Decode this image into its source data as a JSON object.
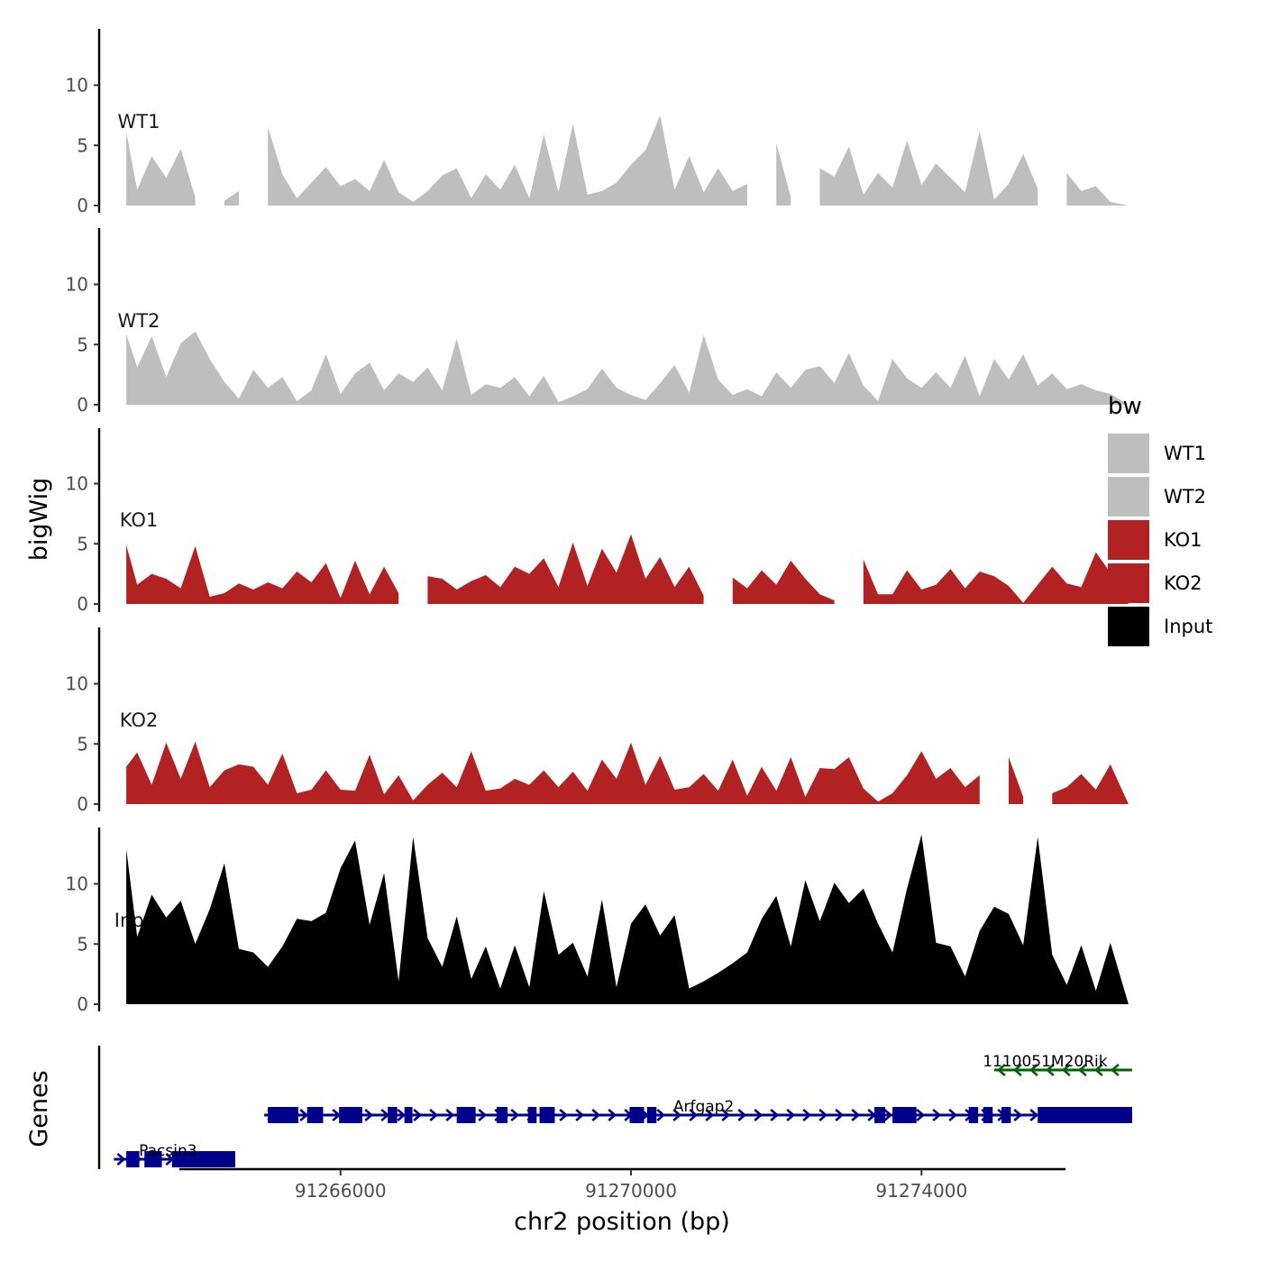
{
  "chart_data": {
    "type": "area",
    "xlabel": "chr2 position (bp)",
    "track_ylabel": "bigWig",
    "genes_ylabel": "Genes",
    "x_range": [
      91262900,
      91277000
    ],
    "x_ticks": [
      91266000,
      91270000,
      91274000
    ],
    "x_tick_labels": [
      "91266000",
      "91270000",
      "91274000"
    ],
    "y_range": [
      0,
      14.5
    ],
    "y_ticks": [
      0,
      5,
      10
    ],
    "y_tick_labels": [
      "0",
      "5",
      "10"
    ],
    "legend": {
      "title": "bw",
      "position": "right",
      "entries": [
        {
          "label": "WT1",
          "color": "#bebebe"
        },
        {
          "label": "WT2",
          "color": "#bebebe"
        },
        {
          "label": "KO1",
          "color": "#b22222"
        },
        {
          "label": "KO2",
          "color": "#b22222"
        },
        {
          "label": "Input",
          "color": "#000000"
        }
      ]
    },
    "tracks": [
      {
        "name": "WT1",
        "color": "#bebebe",
        "x": [
          91263050,
          91263200,
          91263400,
          91263600,
          91263800,
          91264000,
          91264200,
          91264400,
          91264600,
          91264800,
          91265000,
          91265200,
          91265400,
          91265600,
          91265800,
          91266000,
          91266200,
          91266400,
          91266600,
          91266800,
          91267000,
          91267200,
          91267400,
          91267600,
          91267800,
          91268000,
          91268200,
          91268400,
          91268600,
          91268800,
          91269000,
          91269200,
          91269400,
          91269600,
          91269800,
          91270000,
          91270200,
          91270400,
          91270600,
          91270800,
          91271000,
          91271200,
          91271400,
          91271600,
          91271800,
          91272000,
          91272200,
          91272400,
          91272600,
          91272800,
          91273000,
          91273200,
          91273400,
          91273600,
          91273800,
          91274000,
          91274200,
          91274400,
          91274600,
          91274800,
          91275000,
          91275200,
          91275400,
          91275600,
          91275800,
          91276000,
          91276200,
          91276400,
          91276600,
          91276850
        ],
        "values": [
          6.1,
          1.3,
          4.1,
          2.3,
          4.7,
          0.7,
          null,
          0.4,
          1.2,
          null,
          6.5,
          2.6,
          0.6,
          1.9,
          3.2,
          1.6,
          2.2,
          1.2,
          3.8,
          1.1,
          0.3,
          1.2,
          2.5,
          3.1,
          0.6,
          2.6,
          1.3,
          3.4,
          0.6,
          5.9,
          1.1,
          6.8,
          0.9,
          1.2,
          1.9,
          3.4,
          4.6,
          7.5,
          1.3,
          4.1,
          1.1,
          3.1,
          1.2,
          1.8,
          null,
          5.2,
          0.7,
          null,
          3.1,
          2.4,
          4.9,
          0.9,
          2.7,
          1.5,
          5.4,
          1.7,
          3.5,
          2.3,
          1.1,
          6.2,
          0.5,
          1.8,
          4.3,
          1.4,
          null,
          2.7,
          1.2,
          1.6,
          0.3,
          0.0
        ]
      },
      {
        "name": "WT2",
        "color": "#bebebe",
        "x": [
          91263050,
          91263200,
          91263400,
          91263600,
          91263800,
          91264000,
          91264200,
          91264400,
          91264600,
          91264800,
          91265000,
          91265200,
          91265400,
          91265600,
          91265800,
          91266000,
          91266200,
          91266400,
          91266600,
          91266800,
          91267000,
          91267200,
          91267400,
          91267600,
          91267800,
          91268000,
          91268200,
          91268400,
          91268600,
          91268800,
          91269000,
          91269200,
          91269400,
          91269600,
          91269800,
          91270000,
          91270200,
          91270400,
          91270600,
          91270800,
          91271000,
          91271200,
          91271400,
          91271600,
          91271800,
          91272000,
          91272200,
          91272400,
          91272600,
          91272800,
          91273000,
          91273200,
          91273400,
          91273600,
          91273800,
          91274000,
          91274200,
          91274400,
          91274600,
          91274800,
          91275000,
          91275200,
          91275400,
          91275600,
          91275800,
          91276000,
          91276200,
          91276400,
          91276600,
          91276850
        ],
        "values": [
          5.9,
          3.1,
          5.7,
          2.3,
          5.1,
          6.1,
          3.8,
          1.9,
          0.5,
          2.9,
          1.4,
          2.3,
          0.3,
          1.2,
          4.2,
          0.9,
          2.6,
          3.5,
          1.2,
          2.6,
          1.9,
          3.1,
          1.2,
          5.5,
          0.8,
          1.7,
          1.4,
          2.3,
          0.7,
          2.4,
          0.2,
          0.7,
          1.3,
          3.0,
          1.4,
          0.8,
          0.4,
          1.8,
          3.3,
          1.0,
          5.8,
          2.1,
          0.8,
          1.3,
          0.7,
          2.7,
          1.4,
          2.9,
          3.2,
          1.8,
          4.3,
          1.6,
          0.3,
          3.8,
          2.2,
          1.4,
          2.7,
          1.4,
          4.1,
          0.7,
          3.8,
          2.1,
          4.2,
          1.6,
          2.6,
          1.3,
          1.7,
          1.2,
          0.9,
          0.0
        ]
      },
      {
        "name": "KO1",
        "color": "#b22222",
        "x": [
          91263050,
          91263200,
          91263400,
          91263600,
          91263800,
          91264000,
          91264200,
          91264400,
          91264600,
          91264800,
          91265000,
          91265200,
          91265400,
          91265600,
          91265800,
          91266000,
          91266200,
          91266400,
          91266600,
          91266800,
          91267000,
          91267200,
          91267400,
          91267600,
          91267800,
          91268000,
          91268200,
          91268400,
          91268600,
          91268800,
          91269000,
          91269200,
          91269400,
          91269600,
          91269800,
          91270000,
          91270200,
          91270400,
          91270600,
          91270800,
          91271000,
          91271200,
          91271400,
          91271600,
          91271800,
          91272000,
          91272200,
          91272400,
          91272600,
          91272800,
          91273000,
          91273200,
          91273400,
          91273600,
          91273800,
          91274000,
          91274200,
          91274400,
          91274600,
          91274800,
          91275000,
          91275200,
          91275400,
          91275600,
          91275800,
          91276000,
          91276200,
          91276400,
          91276600,
          91276850
        ],
        "values": [
          4.9,
          1.6,
          2.5,
          2.1,
          1.3,
          4.8,
          0.6,
          0.9,
          1.7,
          1.2,
          1.8,
          1.3,
          2.7,
          1.8,
          3.4,
          0.5,
          3.6,
          0.8,
          3.1,
          0.9,
          null,
          2.3,
          2.1,
          1.2,
          1.9,
          2.4,
          1.4,
          3.1,
          2.5,
          3.8,
          1.4,
          5.1,
          1.5,
          4.6,
          2.6,
          5.8,
          2.1,
          3.9,
          1.4,
          3.1,
          0.7,
          null,
          2.2,
          1.3,
          2.8,
          1.6,
          3.6,
          2.1,
          0.8,
          0.3,
          null,
          3.7,
          0.8,
          0.8,
          2.8,
          1.2,
          1.6,
          2.9,
          1.3,
          2.7,
          2.3,
          1.5,
          0.1,
          1.6,
          3.1,
          1.7,
          1.4,
          4.3,
          2.6,
          0.0
        ]
      },
      {
        "name": "KO2",
        "color": "#b22222",
        "x": [
          91263050,
          91263200,
          91263400,
          91263600,
          91263800,
          91264000,
          91264200,
          91264400,
          91264600,
          91264800,
          91265000,
          91265200,
          91265400,
          91265600,
          91265800,
          91266000,
          91266200,
          91266400,
          91266600,
          91266800,
          91267000,
          91267200,
          91267400,
          91267600,
          91267800,
          91268000,
          91268200,
          91268400,
          91268600,
          91268800,
          91269000,
          91269200,
          91269400,
          91269600,
          91269800,
          91270000,
          91270200,
          91270400,
          91270600,
          91270800,
          91271000,
          91271200,
          91271400,
          91271600,
          91271800,
          91272000,
          91272200,
          91272400,
          91272600,
          91272800,
          91273000,
          91273200,
          91273400,
          91273600,
          91273800,
          91274000,
          91274200,
          91274400,
          91274600,
          91274800,
          91275000,
          91275200,
          91275400,
          91275600,
          91275800,
          91276000,
          91276200,
          91276400,
          91276600,
          91276850
        ],
        "values": [
          3.1,
          4.3,
          1.6,
          5.1,
          2.1,
          5.2,
          1.4,
          2.8,
          3.3,
          3.1,
          1.6,
          4.2,
          0.9,
          1.2,
          2.8,
          1.2,
          1.1,
          4.1,
          0.8,
          2.4,
          0.3,
          1.6,
          2.6,
          1.4,
          4.4,
          1.1,
          1.3,
          2.1,
          1.6,
          2.8,
          1.4,
          2.7,
          1.1,
          3.7,
          2.1,
          5.1,
          1.6,
          4.0,
          1.2,
          1.4,
          2.5,
          1.1,
          3.7,
          0.7,
          3.1,
          1.1,
          3.9,
          0.6,
          3.0,
          2.9,
          3.9,
          1.3,
          0.2,
          0.9,
          2.4,
          4.4,
          2.1,
          3.0,
          1.4,
          2.4,
          null,
          3.9,
          0.6,
          null,
          0.9,
          1.4,
          2.5,
          1.2,
          3.3,
          0.0
        ]
      },
      {
        "name": "Input",
        "color": "#000000",
        "x": [
          91263050,
          91263200,
          91263400,
          91263600,
          91263800,
          91264000,
          91264200,
          91264400,
          91264600,
          91264800,
          91265000,
          91265200,
          91265400,
          91265600,
          91265800,
          91266000,
          91266200,
          91266400,
          91266600,
          91266800,
          91267000,
          91267200,
          91267400,
          91267600,
          91267800,
          91268000,
          91268200,
          91268400,
          91268600,
          91268800,
          91269000,
          91269200,
          91269400,
          91269600,
          91269800,
          91270000,
          91270200,
          91270400,
          91270600,
          91270800,
          91271000,
          91271200,
          91271400,
          91271600,
          91271800,
          91272000,
          91272200,
          91272400,
          91272600,
          91272800,
          91273000,
          91273200,
          91273400,
          91273600,
          91273800,
          91274000,
          91274200,
          91274400,
          91274600,
          91274800,
          91275000,
          91275200,
          91275400,
          91275600,
          91275800,
          91276000,
          91276200,
          91276400,
          91276600,
          91276850
        ],
        "values": [
          12.9,
          5.6,
          9.1,
          7.2,
          8.6,
          5.0,
          7.9,
          11.7,
          4.6,
          4.3,
          3.1,
          4.8,
          7.1,
          6.9,
          7.6,
          11.3,
          13.6,
          6.6,
          10.9,
          1.9,
          13.9,
          5.5,
          3.1,
          7.3,
          2.1,
          4.8,
          1.3,
          4.9,
          1.4,
          9.4,
          4.1,
          5.1,
          2.3,
          8.7,
          1.4,
          6.7,
          8.3,
          5.7,
          7.4,
          1.3,
          1.9,
          2.6,
          3.4,
          4.3,
          7.1,
          9.0,
          4.8,
          10.3,
          6.9,
          10.1,
          8.4,
          9.6,
          6.7,
          4.3,
          9.6,
          14.1,
          5.1,
          4.8,
          2.3,
          6.1,
          8.1,
          7.5,
          4.9,
          13.9,
          4.1,
          1.6,
          4.9,
          1.1,
          5.1,
          0.0
        ]
      }
    ],
    "gene_track": {
      "genes": [
        {
          "name": "1110051M20Rik",
          "strand": "-",
          "color": "#006400",
          "row": 2,
          "start": 91275000,
          "end": 91276900,
          "exons": []
        },
        {
          "name": "Arfgap2",
          "strand": "+",
          "color": "#00008b",
          "row": 1,
          "start": 91264950,
          "end": 91276900,
          "exons": [
            [
              91265000,
              91265420
            ],
            [
              91265540,
              91265760
            ],
            [
              91265980,
              91266300
            ],
            [
              91266650,
              91266780
            ],
            [
              91266880,
              91266990
            ],
            [
              91267600,
              91267860
            ],
            [
              91268150,
              91268300
            ],
            [
              91268580,
              91268700
            ],
            [
              91268740,
              91268950
            ],
            [
              91269980,
              91270180
            ],
            [
              91270220,
              91270350
            ],
            [
              91273350,
              91273500
            ],
            [
              91273600,
              91273930
            ],
            [
              91274650,
              91274780
            ],
            [
              91274850,
              91274980
            ],
            [
              91275100,
              91275230
            ],
            [
              91275600,
              91276900
            ]
          ]
        },
        {
          "name": "Pacsin3",
          "strand": "+",
          "color": "#00008b",
          "row": 0,
          "start": 91262880,
          "end": 91264550,
          "exons": [
            [
              91263050,
              91263230
            ],
            [
              91263300,
              91263540
            ],
            [
              91263680,
              91264550
            ]
          ]
        }
      ]
    }
  }
}
